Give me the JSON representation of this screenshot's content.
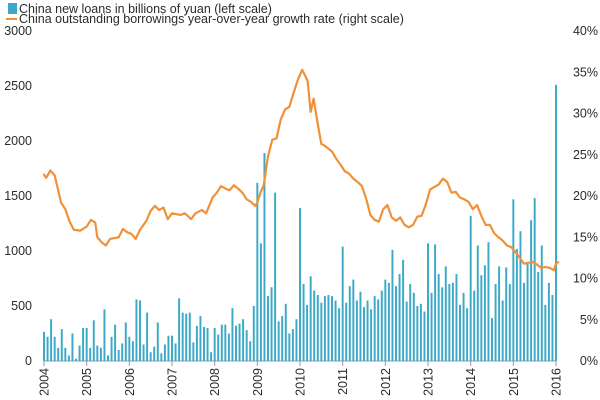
{
  "chart_data": {
    "type": "bar+line",
    "legend_placement": "top-left",
    "grid": false,
    "colors": {
      "bars": "#3ba9c7",
      "line": "#f0913a",
      "axis": "#999999",
      "text": "#2b2b2b"
    },
    "x_axis": {
      "ticks": [
        "2004",
        "2005",
        "2006",
        "2007",
        "2008",
        "2009",
        "2010",
        "2011",
        "2012",
        "2013",
        "2014",
        "2015",
        "2016"
      ],
      "tick_label_rotation": -90,
      "range": [
        2004,
        2016
      ]
    },
    "y_left": {
      "ticks": [
        "0",
        "500",
        "1000",
        "1500",
        "2000",
        "2500",
        "3000"
      ],
      "range": [
        0,
        3000
      ]
    },
    "y_right": {
      "ticks": [
        "0%",
        "5%",
        "10%",
        "15%",
        "20%",
        "25%",
        "30%",
        "35%",
        "40%"
      ],
      "range": [
        0,
        40
      ]
    },
    "series": [
      {
        "name": "China new loans in billions of yuan (left scale)",
        "type": "bar",
        "axis": "left",
        "start": "2004-01",
        "frequency": "monthly",
        "values": [
          265,
          220,
          380,
          220,
          120,
          290,
          120,
          50,
          250,
          20,
          140,
          300,
          300,
          120,
          370,
          140,
          120,
          470,
          50,
          220,
          330,
          100,
          160,
          350,
          220,
          180,
          560,
          550,
          150,
          440,
          80,
          130,
          350,
          70,
          150,
          230,
          230,
          160,
          570,
          440,
          430,
          440,
          170,
          320,
          410,
          310,
          300,
          80,
          300,
          240,
          330,
          330,
          250,
          480,
          320,
          340,
          380,
          280,
          180,
          500,
          1620,
          1070,
          1890,
          590,
          670,
          1530,
          360,
          410,
          520,
          250,
          290,
          380,
          1390,
          700,
          510,
          770,
          640,
          600,
          530,
          590,
          600,
          590,
          550,
          480,
          1040,
          530,
          680,
          740,
          550,
          630,
          490,
          550,
          470,
          590,
          560,
          640,
          740,
          710,
          1010,
          680,
          790,
          920,
          540,
          700,
          620,
          500,
          520,
          450,
          1070,
          620,
          1060,
          790,
          670,
          860,
          700,
          710,
          790,
          510,
          620,
          480,
          1320,
          640,
          1050,
          780,
          870,
          1080,
          390,
          700,
          860,
          550,
          850,
          700,
          1470,
          1020,
          1180,
          710,
          900,
          1280,
          1480,
          810,
          1050,
          510,
          710,
          600,
          2510
        ]
      },
      {
        "name": "China outstanding borrowings year-over-year growth rate (right scale)",
        "type": "line",
        "axis": "right",
        "points": [
          [
            2004.0,
            22.6
          ],
          [
            2004.05,
            22.2
          ],
          [
            2004.15,
            23.1
          ],
          [
            2004.25,
            22.5
          ],
          [
            2004.4,
            19.2
          ],
          [
            2004.5,
            18.4
          ],
          [
            2004.6,
            16.9
          ],
          [
            2004.7,
            15.9
          ],
          [
            2004.85,
            15.8
          ],
          [
            2005.0,
            16.3
          ],
          [
            2005.1,
            17.1
          ],
          [
            2005.2,
            16.8
          ],
          [
            2005.25,
            15.0
          ],
          [
            2005.35,
            14.4
          ],
          [
            2005.45,
            14.0
          ],
          [
            2005.55,
            14.8
          ],
          [
            2005.65,
            14.9
          ],
          [
            2005.75,
            15.0
          ],
          [
            2005.85,
            16.0
          ],
          [
            2005.95,
            15.6
          ],
          [
            2006.05,
            15.4
          ],
          [
            2006.15,
            14.8
          ],
          [
            2006.25,
            15.9
          ],
          [
            2006.4,
            17.0
          ],
          [
            2006.5,
            18.2
          ],
          [
            2006.6,
            18.8
          ],
          [
            2006.7,
            18.3
          ],
          [
            2006.8,
            18.6
          ],
          [
            2006.9,
            17.2
          ],
          [
            2007.0,
            17.9
          ],
          [
            2007.1,
            17.8
          ],
          [
            2007.2,
            17.7
          ],
          [
            2007.3,
            17.9
          ],
          [
            2007.45,
            17.2
          ],
          [
            2007.55,
            17.9
          ],
          [
            2007.7,
            18.3
          ],
          [
            2007.8,
            17.9
          ],
          [
            2007.95,
            19.8
          ],
          [
            2008.05,
            20.4
          ],
          [
            2008.15,
            21.2
          ],
          [
            2008.25,
            20.9
          ],
          [
            2008.35,
            20.7
          ],
          [
            2008.45,
            21.3
          ],
          [
            2008.55,
            20.9
          ],
          [
            2008.65,
            20.4
          ],
          [
            2008.75,
            19.6
          ],
          [
            2008.85,
            19.3
          ],
          [
            2008.95,
            18.8
          ],
          [
            2009.0,
            19.2
          ],
          [
            2009.08,
            20.5
          ],
          [
            2009.15,
            21.3
          ],
          [
            2009.25,
            24.8
          ],
          [
            2009.35,
            26.8
          ],
          [
            2009.45,
            27.0
          ],
          [
            2009.55,
            29.3
          ],
          [
            2009.65,
            30.5
          ],
          [
            2009.75,
            30.8
          ],
          [
            2009.85,
            32.5
          ],
          [
            2009.95,
            34.1
          ],
          [
            2010.05,
            35.3
          ],
          [
            2010.12,
            34.6
          ],
          [
            2010.18,
            33.9
          ],
          [
            2010.25,
            30.2
          ],
          [
            2010.32,
            31.8
          ],
          [
            2010.4,
            29.2
          ],
          [
            2010.5,
            26.3
          ],
          [
            2010.55,
            26.2
          ],
          [
            2010.65,
            25.8
          ],
          [
            2010.75,
            25.4
          ],
          [
            2010.85,
            24.5
          ],
          [
            2010.95,
            23.8
          ],
          [
            2011.05,
            23.0
          ],
          [
            2011.15,
            22.7
          ],
          [
            2011.25,
            22.1
          ],
          [
            2011.35,
            21.7
          ],
          [
            2011.45,
            21.2
          ],
          [
            2011.55,
            19.7
          ],
          [
            2011.65,
            17.7
          ],
          [
            2011.75,
            17.1
          ],
          [
            2011.85,
            16.9
          ],
          [
            2011.95,
            18.4
          ],
          [
            2012.05,
            18.9
          ],
          [
            2012.15,
            17.4
          ],
          [
            2012.25,
            17.0
          ],
          [
            2012.35,
            17.4
          ],
          [
            2012.45,
            16.5
          ],
          [
            2012.55,
            16.2
          ],
          [
            2012.65,
            16.5
          ],
          [
            2012.75,
            17.5
          ],
          [
            2012.85,
            17.6
          ],
          [
            2012.95,
            19.0
          ],
          [
            2013.05,
            20.8
          ],
          [
            2013.15,
            21.1
          ],
          [
            2013.25,
            21.4
          ],
          [
            2013.35,
            22.1
          ],
          [
            2013.45,
            21.7
          ],
          [
            2013.55,
            20.4
          ],
          [
            2013.65,
            20.5
          ],
          [
            2013.75,
            19.8
          ],
          [
            2013.85,
            19.6
          ],
          [
            2013.95,
            19.3
          ],
          [
            2014.05,
            18.4
          ],
          [
            2014.15,
            18.9
          ],
          [
            2014.25,
            17.6
          ],
          [
            2014.35,
            16.5
          ],
          [
            2014.45,
            16.5
          ],
          [
            2014.55,
            15.5
          ],
          [
            2014.65,
            15.0
          ],
          [
            2014.75,
            14.6
          ],
          [
            2014.85,
            14.0
          ],
          [
            2014.95,
            13.8
          ],
          [
            2015.05,
            13.2
          ],
          [
            2015.15,
            12.5
          ],
          [
            2015.25,
            11.8
          ],
          [
            2015.35,
            11.9
          ],
          [
            2015.45,
            12.0
          ],
          [
            2015.55,
            11.7
          ],
          [
            2015.65,
            11.3
          ],
          [
            2015.75,
            11.4
          ],
          [
            2015.85,
            11.3
          ],
          [
            2015.95,
            11.0
          ],
          [
            2016.0,
            11.8
          ],
          [
            2016.05,
            12.0
          ]
        ]
      }
    ]
  }
}
